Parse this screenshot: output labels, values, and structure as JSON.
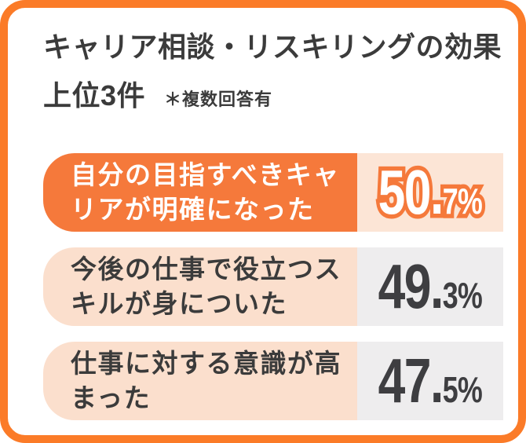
{
  "card": {
    "title_line1": "キャリア相談・リスキリングの効果",
    "title_line2": "上位3件",
    "title_note": "＊複数回答有"
  },
  "chart_data": {
    "type": "bar",
    "title": "キャリア相談・リスキリングの効果 上位3件",
    "note": "＊複数回答有 (multiple answers allowed)",
    "categories": [
      "自分の目指すべきキャリアが明確になった",
      "今後の仕事で役立つスキルが身についた",
      "仕事に対する意識が高まった"
    ],
    "values": [
      50.7,
      49.3,
      47.5
    ],
    "unit": "%",
    "orientation": "horizontal",
    "highlighted_index": 0,
    "legend": "none",
    "grid": "off"
  },
  "rows": [
    {
      "label_lines": [
        "自分の目指すべきキャ",
        "リアが明確になった"
      ],
      "value": "50.7%",
      "value_big": "50.",
      "value_small": "7%",
      "highlighted": true
    },
    {
      "label_lines": [
        "今後の仕事で役立つス",
        "キルが身についた"
      ],
      "value": "49.3%",
      "value_big": "49.",
      "value_small": "3%",
      "highlighted": false
    },
    {
      "label_lines": [
        "仕事に対する意識が高",
        "まった"
      ],
      "value": "47.5%",
      "value_big": "47.",
      "value_small": "5%",
      "highlighted": false
    }
  ],
  "colors": {
    "border_orange": "#FB7B28",
    "bar_orange": "#F5793B",
    "label_peach": "#FBDFCD",
    "value_peach": "#FCE5D6",
    "value_gray": "#EEEDEE",
    "text_dark": "#3B3B3B",
    "value_text_dark": "#3E3E41",
    "highlight_value_fill": "#FFFFFF"
  }
}
